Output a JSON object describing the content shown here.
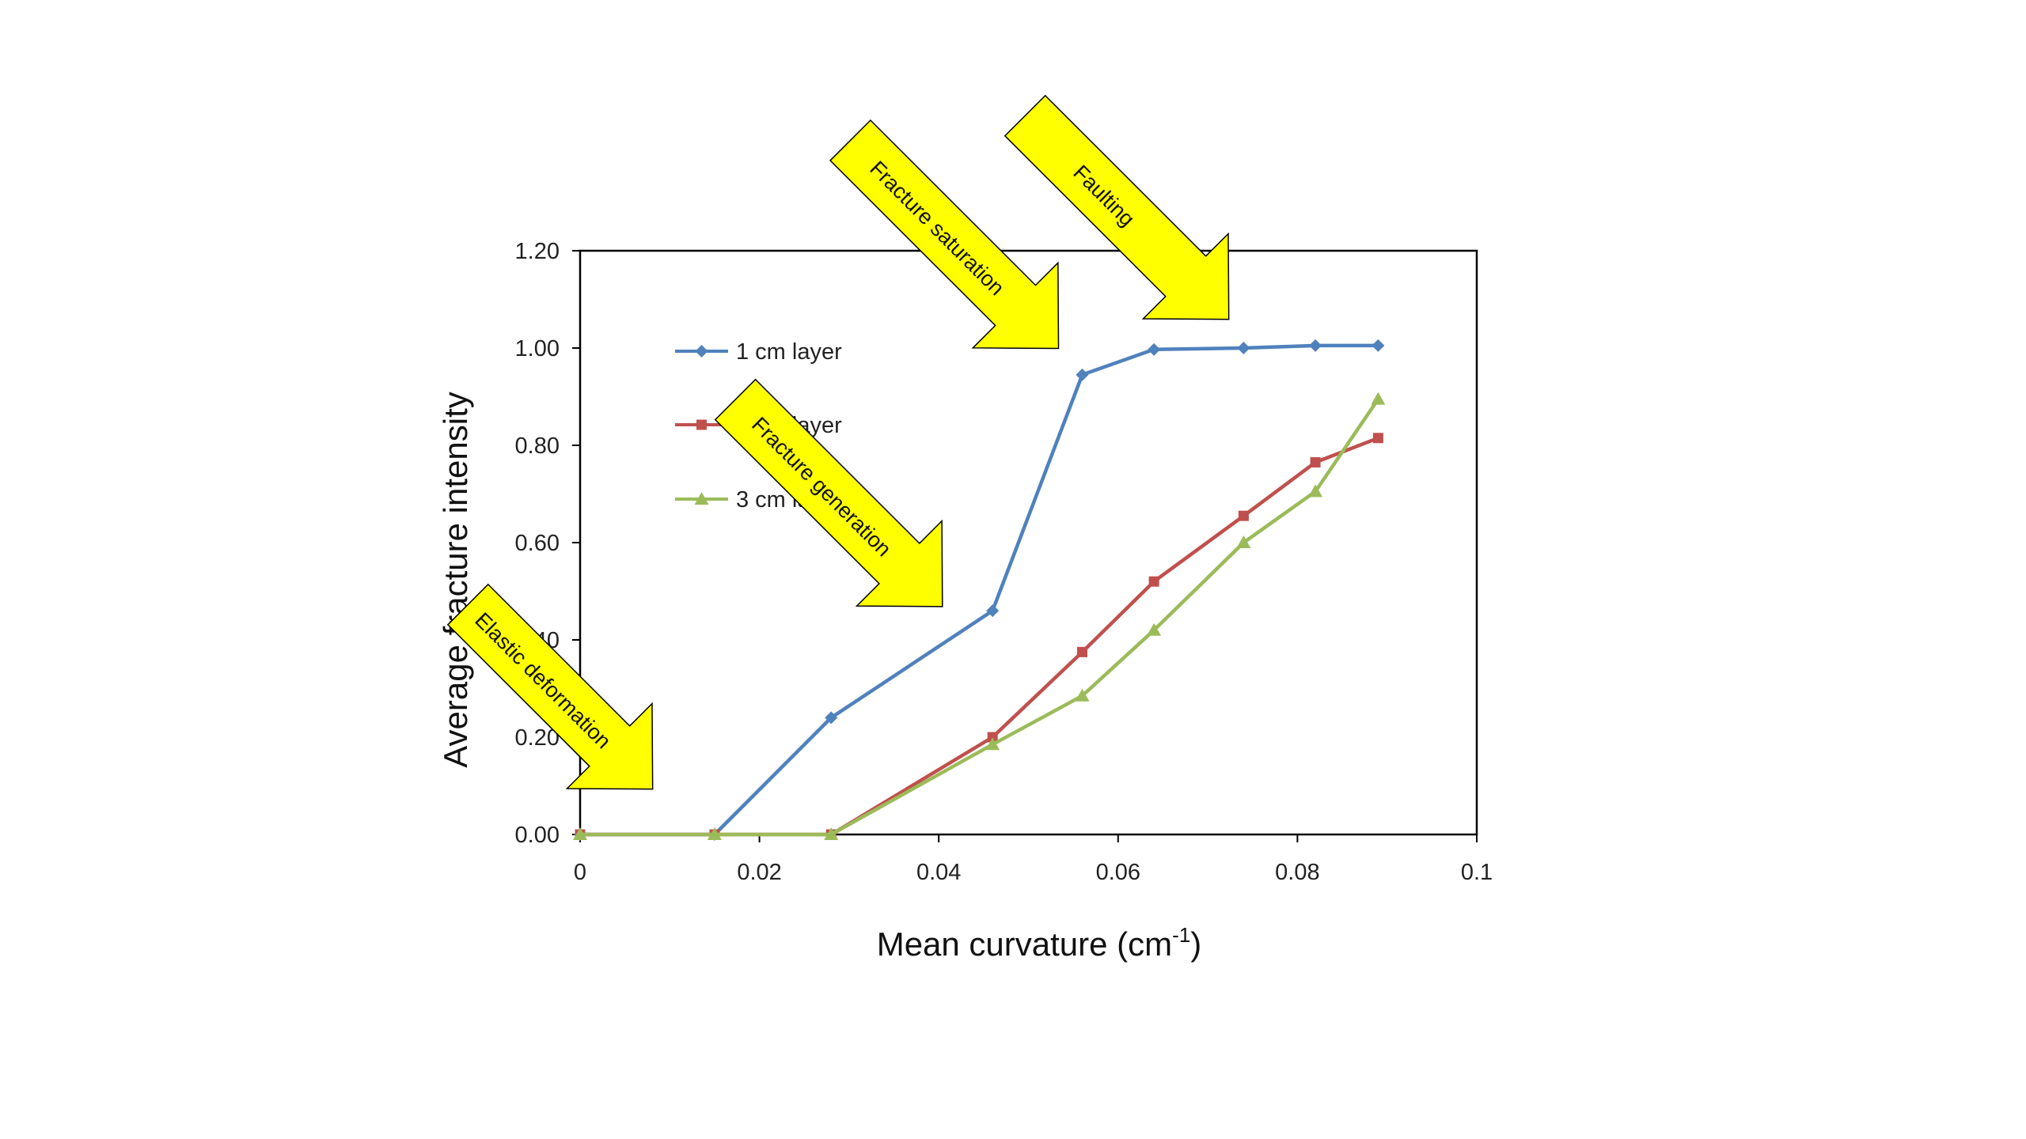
{
  "chart_data": {
    "type": "line",
    "title": "",
    "xlabel": "Mean curvature (cm",
    "xlabel_superscript": "-1",
    "xlabel_suffix": ")",
    "ylabel": "Average fracture intensity",
    "xlim": [
      0,
      0.1
    ],
    "ylim": [
      0,
      1.2
    ],
    "x_ticks": [
      0,
      0.02,
      0.04,
      0.06,
      0.08,
      0.1
    ],
    "x_tick_labels": [
      "0",
      "0.02",
      "0.04",
      "0.06",
      "0.08",
      "0.1"
    ],
    "y_ticks": [
      0,
      0.2,
      0.4,
      0.6,
      0.8,
      1.0,
      1.2
    ],
    "y_tick_labels": [
      "0.00",
      "0.20",
      "0.40",
      "0.60",
      "0.80",
      "1.00",
      "1.20"
    ],
    "grid": false,
    "legend_position": "upper-left inside plot",
    "series": [
      {
        "name": "1 cm layer",
        "color": "#4f81bd",
        "marker": "diamond",
        "x": [
          0,
          0.015,
          0.028,
          0.046,
          0.056,
          0.064,
          0.074,
          0.082,
          0.089
        ],
        "y": [
          0,
          0,
          0.24,
          0.46,
          0.945,
          0.997,
          1.0,
          1.005,
          1.005
        ]
      },
      {
        "name": "2 cm layer",
        "color": "#c0504d",
        "marker": "square",
        "x": [
          0,
          0.015,
          0.028,
          0.046,
          0.056,
          0.064,
          0.074,
          0.082,
          0.089
        ],
        "y": [
          0,
          0,
          0,
          0.2,
          0.375,
          0.52,
          0.655,
          0.765,
          0.815
        ]
      },
      {
        "name": "3 cm layer",
        "color": "#9bbb59",
        "marker": "triangle",
        "x": [
          0,
          0.015,
          0.028,
          0.046,
          0.056,
          0.064,
          0.074,
          0.082,
          0.089
        ],
        "y": [
          0,
          0,
          0,
          0.185,
          0.285,
          0.42,
          0.6,
          0.705,
          0.895
        ]
      }
    ],
    "annotations": [
      {
        "text": "Elastic deformation",
        "kind": "arrow",
        "color": "#ffff00"
      },
      {
        "text": "Fracture generation",
        "kind": "arrow",
        "color": "#ffff00"
      },
      {
        "text": "Fracture saturation",
        "kind": "arrow",
        "color": "#ffff00"
      },
      {
        "text": "Faulting",
        "kind": "arrow",
        "color": "#ffff00"
      }
    ]
  }
}
